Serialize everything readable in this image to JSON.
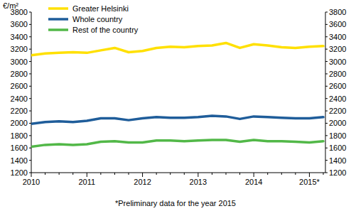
{
  "chart_data": {
    "type": "line",
    "ylabel": "€/m²",
    "annotations": [
      "*Preliminary data for the year 2015"
    ],
    "categories": [
      "2010",
      null,
      null,
      null,
      "2011",
      null,
      null,
      null,
      "2012",
      null,
      null,
      null,
      "2013",
      null,
      null,
      null,
      "2014",
      null,
      null,
      null,
      "2015*",
      null
    ],
    "series": [
      {
        "name": "Greater Helsinki",
        "color": "#ffe000",
        "values": [
          3100,
          3130,
          3140,
          3150,
          3140,
          3180,
          3220,
          3150,
          3170,
          3220,
          3240,
          3230,
          3250,
          3260,
          3300,
          3220,
          3280,
          3260,
          3230,
          3220,
          3240,
          3250
        ]
      },
      {
        "name": "Whole country",
        "color": "#1f5d9a",
        "values": [
          1990,
          2020,
          2030,
          2020,
          2040,
          2080,
          2080,
          2050,
          2080,
          2100,
          2090,
          2090,
          2100,
          2120,
          2110,
          2070,
          2110,
          2100,
          2090,
          2080,
          2080,
          2100
        ]
      },
      {
        "name": "Rest of the country",
        "color": "#52b848",
        "values": [
          1620,
          1650,
          1660,
          1650,
          1660,
          1700,
          1710,
          1690,
          1690,
          1720,
          1720,
          1710,
          1720,
          1730,
          1730,
          1700,
          1730,
          1710,
          1710,
          1700,
          1690,
          1710
        ]
      }
    ],
    "ylim": [
      1200,
      3800
    ],
    "yticks": [
      1200,
      1400,
      1600,
      1800,
      2000,
      2200,
      2400,
      2600,
      2800,
      3000,
      3200,
      3400,
      3600,
      3800
    ],
    "grid": false,
    "legend": "upper left"
  }
}
